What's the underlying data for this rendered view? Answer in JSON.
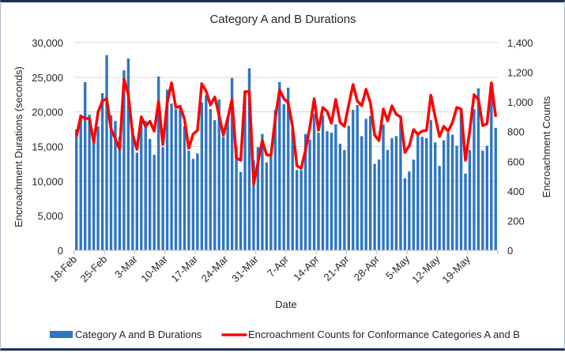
{
  "chart_data": {
    "type": "bar",
    "title": "Category A and B Durations",
    "xlabel": "Date",
    "ylabel": "Encroachment Durations (seconds)",
    "y2label": "Encroachment Counts",
    "ylim": [
      0,
      30000
    ],
    "y2lim": [
      0,
      1400
    ],
    "yticks": [
      "0",
      "5,000",
      "10,000",
      "15,000",
      "20,000",
      "25,000",
      "30,000"
    ],
    "yticks_values": [
      0,
      5000,
      10000,
      15000,
      20000,
      25000,
      30000
    ],
    "y2ticks": [
      "0",
      "200",
      "400",
      "600",
      "800",
      "1,000",
      "1,200",
      "1,400"
    ],
    "y2ticks_values": [
      0,
      200,
      400,
      600,
      800,
      1000,
      1200,
      1400
    ],
    "xtick_labels": [
      "18-Feb",
      "25-Feb",
      "3-Mar",
      "10-Mar",
      "17-Mar",
      "24-Mar",
      "31-Mar",
      "7-Apr",
      "14-Apr",
      "21-Apr",
      "28-Apr",
      "5-May",
      "12-May",
      "19-May"
    ],
    "days_per_tick": 7,
    "grid": true,
    "legend_position": "bottom",
    "series": [
      {
        "name": "Category A and B Durations",
        "type": "bar",
        "axis": "left",
        "color": "#2e75c4",
        "values": [
          17500,
          19600,
          24300,
          19600,
          16500,
          17900,
          22700,
          28200,
          19500,
          18700,
          16400,
          26000,
          27700,
          17700,
          14100,
          19300,
          18700,
          16100,
          13800,
          25100,
          14900,
          23200,
          21200,
          20400,
          21000,
          17900,
          14400,
          13200,
          14000,
          21400,
          22400,
          20400,
          18800,
          21800,
          16400,
          19000,
          24900,
          14900,
          11300,
          22900,
          26300,
          13000,
          14900,
          16800,
          12700,
          13500,
          20300,
          24300,
          21100,
          23500,
          17900,
          11600,
          11600,
          16800,
          16000,
          19700,
          17000,
          19500,
          17200,
          17000,
          18200,
          15400,
          14500,
          18000,
          20300,
          21000,
          16500,
          19000,
          19400,
          12500,
          13100,
          18200,
          14500,
          16200,
          16500,
          18500,
          10400,
          11400,
          13100,
          16800,
          16400,
          16200,
          18800,
          15600,
          12200,
          15900,
          17000,
          16700,
          15100,
          20200,
          11100,
          14500,
          20400,
          23400,
          14400,
          15100,
          22900,
          17700
        ]
      },
      {
        "name": "Encroachment Counts for Conformance Categories A and B",
        "type": "line",
        "axis": "right",
        "color": "#ff0000",
        "values": [
          767,
          905,
          889,
          889,
          729,
          932,
          1006,
          1022,
          820,
          751,
          681,
          1155,
          1049,
          783,
          681,
          900,
          836,
          870,
          804,
          1006,
          713,
          996,
          1129,
          964,
          969,
          884,
          687,
          783,
          809,
          1123,
          1075,
          980,
          1033,
          910,
          777,
          889,
          1017,
          623,
          607,
          1070,
          1070,
          447,
          591,
          740,
          644,
          639,
          889,
          1081,
          1022,
          996,
          836,
          570,
          553,
          676,
          830,
          1022,
          809,
          963,
          937,
          857,
          1017,
          862,
          836,
          980,
          1118,
          1006,
          975,
          1086,
          996,
          777,
          740,
          953,
          873,
          974,
          916,
          900,
          660,
          703,
          814,
          783,
          804,
          809,
          1046,
          900,
          767,
          836,
          804,
          862,
          963,
          953,
          607,
          804,
          1049,
          1017,
          841,
          852,
          1129,
          900
        ]
      }
    ]
  },
  "legend": {
    "items": [
      {
        "label": "Category A and B Durations",
        "color": "#2e75c4"
      },
      {
        "label": "Encroachment Counts for Conformance Categories A and B",
        "color": "#ff0000"
      }
    ]
  }
}
